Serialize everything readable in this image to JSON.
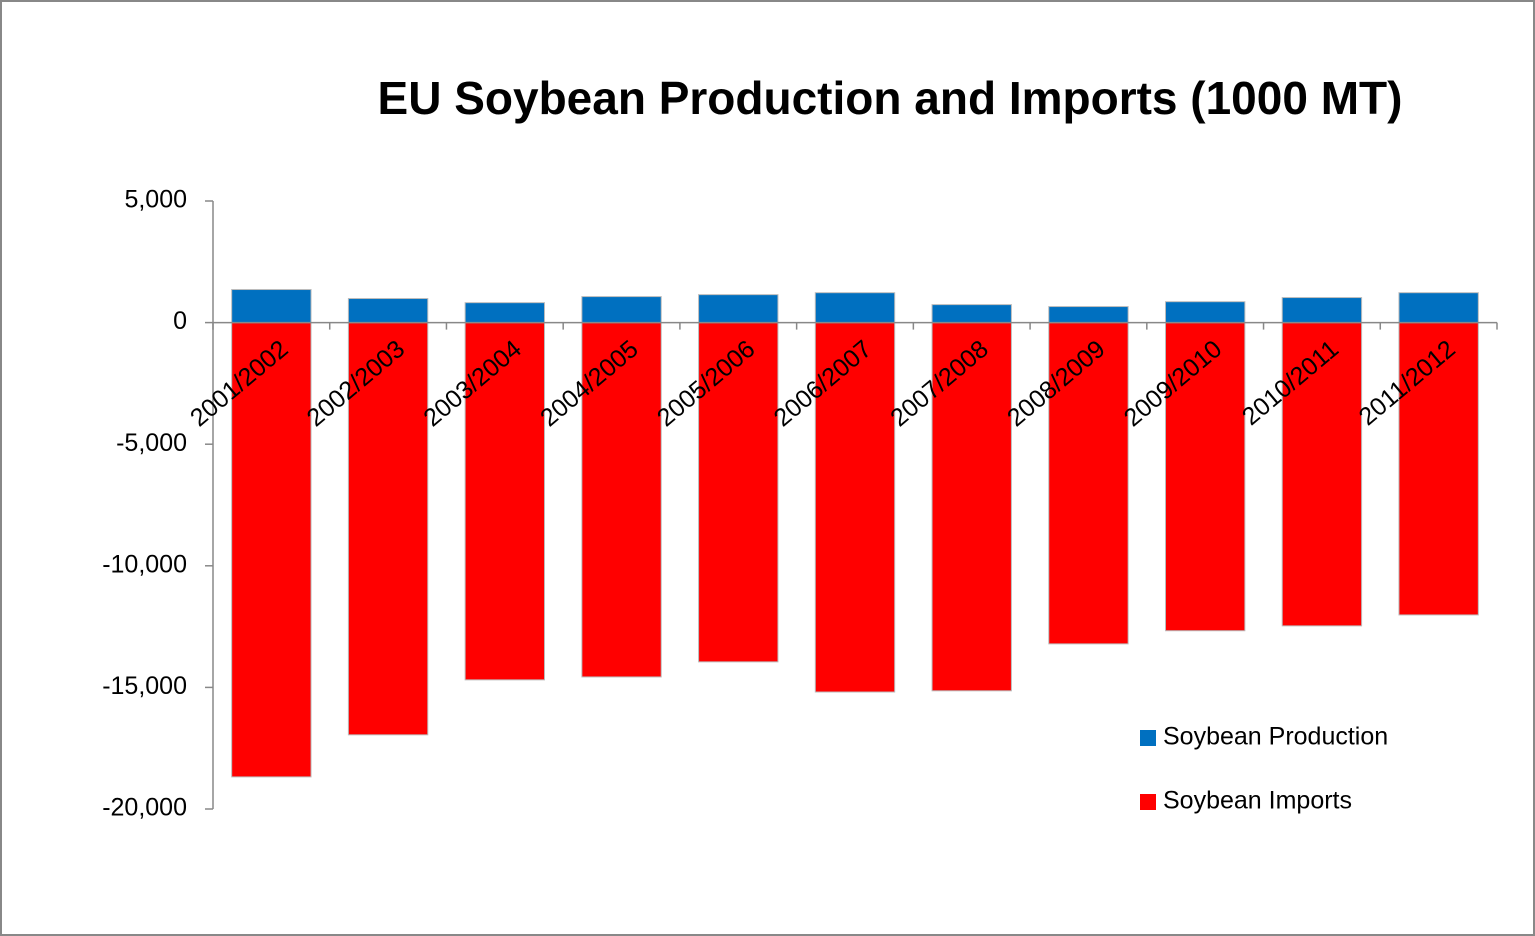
{
  "chart_data": {
    "type": "bar",
    "stacked": true,
    "title": "EU Soybean Production and Imports (1000 MT)",
    "categories": [
      "2001/2002",
      "2002/2003",
      "2003/2004",
      "2004/2005",
      "2005/2006",
      "2006/2007",
      "2007/2008",
      "2008/2009",
      "2009/2010",
      "2010/2011",
      "2011/2012"
    ],
    "series": [
      {
        "name": "Soybean Production",
        "color": "#0070c0",
        "values": [
          1360,
          990,
          820,
          1070,
          1150,
          1230,
          740,
          660,
          860,
          1030,
          1230
        ]
      },
      {
        "name": "Soybean Imports",
        "color": "#ff0000",
        "values": [
          -18680,
          -16950,
          -14690,
          -14570,
          -13950,
          -15190,
          -15140,
          -13210,
          -12670,
          -12470,
          -12020
        ]
      }
    ],
    "ylim": [
      -20000,
      5000
    ],
    "yticks": [
      {
        "value": -20000,
        "label": "-20,000"
      },
      {
        "value": -15000,
        "label": "-15,000"
      },
      {
        "value": -10000,
        "label": "-10,000"
      },
      {
        "value": -5000,
        "label": "-5,000"
      },
      0,
      {
        "value": 5000,
        "label": "5,000"
      }
    ],
    "grid": false,
    "legend": "lower right"
  }
}
